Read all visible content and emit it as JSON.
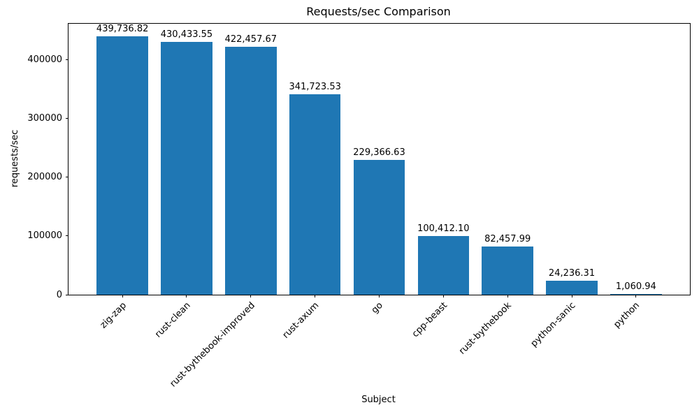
{
  "chart_data": {
    "type": "bar",
    "title": "Requests/sec Comparison",
    "xlabel": "Subject",
    "ylabel": "requests/sec",
    "categories": [
      "zig-zap",
      "rust-clean",
      "rust-bythebook-improved",
      "rust-axum",
      "go",
      "cpp-beast",
      "rust-bythebook",
      "python-sanic",
      "python"
    ],
    "values": [
      439736.82,
      430433.55,
      422457.67,
      341723.53,
      229366.63,
      100412.1,
      82457.99,
      24236.31,
      1060.94
    ],
    "value_labels": [
      "439,736.82",
      "430,433.55",
      "422,457.67",
      "341,723.53",
      "229,366.63",
      "100,412.10",
      "82,457.99",
      "24,236.31",
      "1,060.94"
    ],
    "bar_color": "#1f77b4",
    "ylim": [
      0,
      461723.66
    ],
    "yticks": [
      0,
      100000,
      200000,
      300000,
      400000
    ],
    "ytick_labels": [
      "0",
      "100000",
      "200000",
      "300000",
      "400000"
    ],
    "x_tick_rotation_deg": 45,
    "bar_width_fraction": 0.8,
    "x_margin_fraction": 0.05,
    "grid": false,
    "legend": "none"
  }
}
